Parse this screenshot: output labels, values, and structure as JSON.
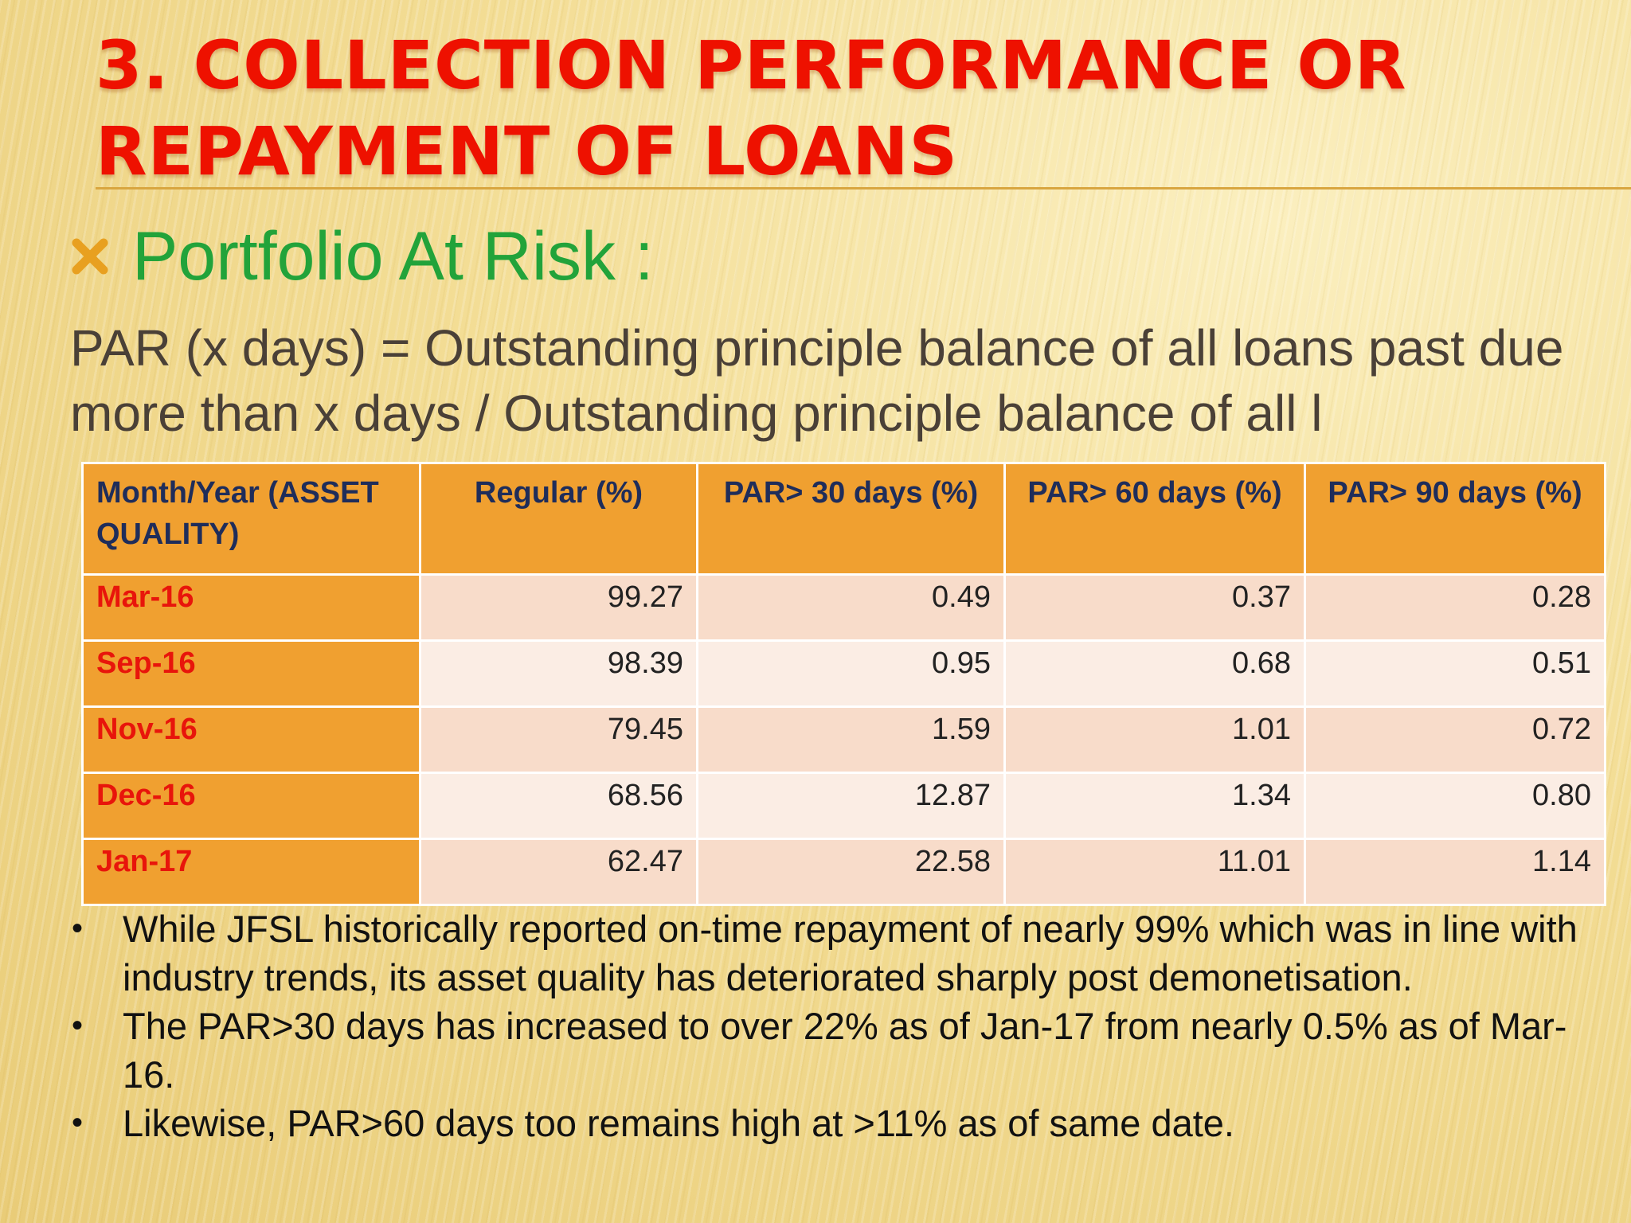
{
  "slide": {
    "title": "3.  COLLECTION PERFORMANCE OR REPAYMENT OF LOANS",
    "subtitle": "Portfolio At Risk :",
    "subtitle_icon": "x-mark-icon",
    "definition": "PAR (x days) = Outstanding principle balance of all loans past due more than x days / Outstanding principle balance of all l",
    "colors": {
      "title": "#ee1100",
      "subtitle": "#22a33a",
      "table_header": "#f0a030",
      "row_label": "#e8150b"
    }
  },
  "table": {
    "headers": [
      "Month/Year (ASSET QUALITY)",
      "Regular (%)",
      "PAR> 30 days (%)",
      "PAR> 60 days (%)",
      "PAR> 90 days (%)"
    ],
    "rows": [
      {
        "month": "Mar-16",
        "regular": "99.27",
        "par30": "0.49",
        "par60": "0.37",
        "par90": "0.28"
      },
      {
        "month": "Sep-16",
        "regular": "98.39",
        "par30": "0.95",
        "par60": "0.68",
        "par90": "0.51"
      },
      {
        "month": "Nov-16",
        "regular": "79.45",
        "par30": "1.59",
        "par60": "1.01",
        "par90": "0.72"
      },
      {
        "month": "Dec-16",
        "regular": "68.56",
        "par30": "12.87",
        "par60": "1.34",
        "par90": "0.80"
      },
      {
        "month": "Jan-17",
        "regular": "62.47",
        "par30": "22.58",
        "par60": "11.01",
        "par90": "1.14"
      }
    ]
  },
  "notes": [
    "While JFSL historically reported on-time repayment of nearly 99% which was in line with industry trends, its asset quality has deteriorated sharply post demonetisation.",
    "The PAR>30 days has increased to over 22% as of Jan-17 from nearly 0.5% as of Mar-16.",
    "Likewise, PAR>60 days too remains high at >11% as of same date."
  ],
  "bullet_glyph": "•"
}
